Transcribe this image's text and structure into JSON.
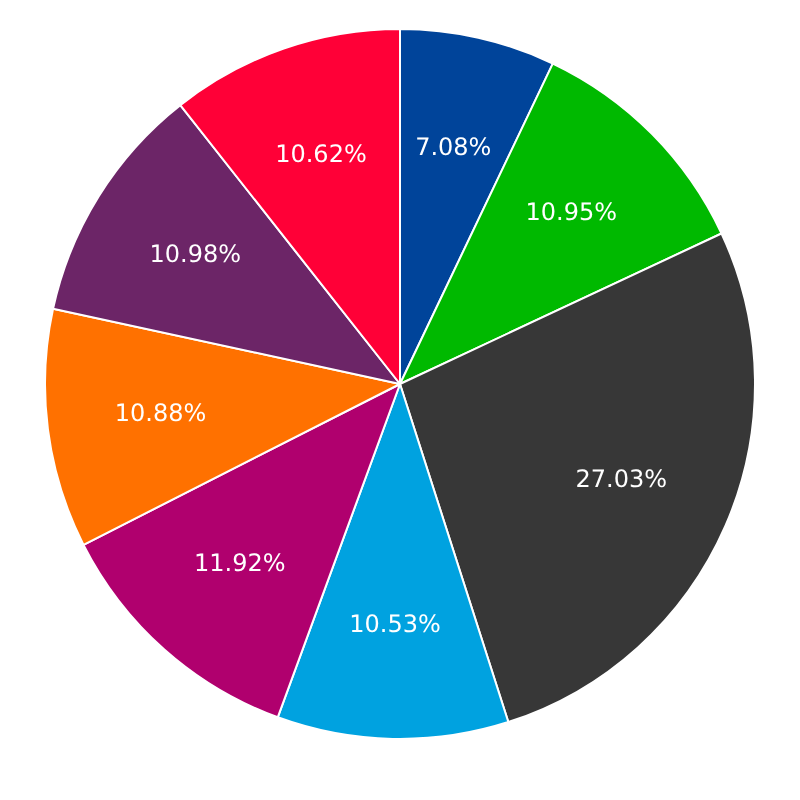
{
  "chart_data": {
    "type": "pie",
    "categories": [
      null,
      null,
      null,
      null,
      null,
      null,
      null,
      null
    ],
    "values": [
      7.08,
      10.95,
      27.03,
      10.53,
      11.92,
      10.88,
      10.98,
      10.62
    ],
    "colors": [
      "#00449a",
      "#00b900",
      "#373737",
      "#00a2e0",
      "#b0006e",
      "#ff7100",
      "#6c2567",
      "#ff0037"
    ],
    "value_labels": [
      "7.08%",
      "10.95%",
      "27.03%",
      "10.53%",
      "11.92%",
      "10.88%",
      "10.98%",
      "10.62%"
    ],
    "legend": false
  }
}
